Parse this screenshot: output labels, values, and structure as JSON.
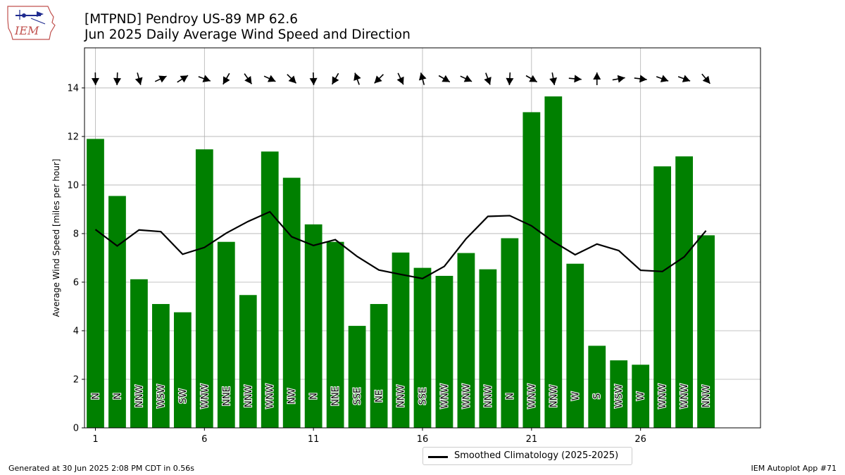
{
  "header": {
    "title_line1": "[MTPND] Pendroy US-89 MP 62.6",
    "title_line2": "Jun 2025 Daily Average Wind Speed and Direction"
  },
  "logo": {
    "text": "IEM",
    "icon": "iem-iowa-map-logo"
  },
  "footer": {
    "generated": "Generated at 30 Jun 2025 2:08 PM CDT in 0.56s",
    "app": "IEM Autoplot App #71"
  },
  "legend": {
    "label": "Smoothed Climatology (2025-2025)"
  },
  "colors": {
    "bar": "#008000",
    "line": "#000000",
    "grid": "#b0b0b0"
  },
  "chart_data": {
    "type": "bar",
    "ylabel": "Average Wind Speed [miles per hour]",
    "xlabel": "",
    "xlim": [
      0.5,
      31.5
    ],
    "ylim": [
      0,
      15.65
    ],
    "x_ticks": [
      1,
      6,
      11,
      16,
      21,
      26
    ],
    "y_ticks": [
      0,
      2,
      4,
      6,
      8,
      10,
      12,
      14
    ],
    "grid": true,
    "legend_position": "bottom-center",
    "days": [
      1,
      2,
      3,
      4,
      5,
      6,
      7,
      8,
      9,
      10,
      11,
      12,
      13,
      14,
      15,
      16,
      17,
      18,
      19,
      20,
      21,
      22,
      23,
      24,
      25,
      26,
      27,
      28,
      29
    ],
    "series": [
      {
        "name": "Daily Average Wind Speed",
        "values": [
          11.9,
          9.55,
          6.12,
          5.1,
          4.76,
          11.47,
          7.66,
          5.47,
          11.38,
          10.3,
          8.38,
          7.66,
          4.2,
          5.1,
          7.22,
          6.59,
          6.26,
          7.2,
          6.53,
          7.81,
          13.0,
          13.65,
          6.76,
          3.38,
          2.78,
          2.6,
          10.77,
          11.18,
          7.93
        ]
      },
      {
        "name": "Smoothed Climatology (2025-2025)",
        "values": [
          8.17,
          7.49,
          8.15,
          8.08,
          7.15,
          7.43,
          8.02,
          8.5,
          8.9,
          7.87,
          7.51,
          7.75,
          7.06,
          6.5,
          6.32,
          6.15,
          6.65,
          7.79,
          8.71,
          8.74,
          8.32,
          7.67,
          7.13,
          7.57,
          7.3,
          6.49,
          6.44,
          7.04,
          8.12
        ]
      }
    ],
    "direction_labels": [
      "N",
      "N",
      "NNW",
      "WSW",
      "SW",
      "WNW",
      "NNE",
      "NNW",
      "WNW",
      "NW",
      "N",
      "NNE",
      "SSE",
      "NE",
      "NNW",
      "SSE",
      "WNW",
      "WNW",
      "NNW",
      "N",
      "WNW",
      "NNW",
      "W",
      "S",
      "WSW",
      "W",
      "WNW",
      "WNW",
      "NNW"
    ],
    "wind_dir_degrees": [
      359,
      2,
      345,
      245,
      238,
      290,
      30,
      325,
      295,
      315,
      358,
      30,
      160,
      45,
      335,
      165,
      300,
      295,
      340,
      3,
      300,
      350,
      275,
      180,
      260,
      277,
      290,
      290,
      320
    ]
  }
}
